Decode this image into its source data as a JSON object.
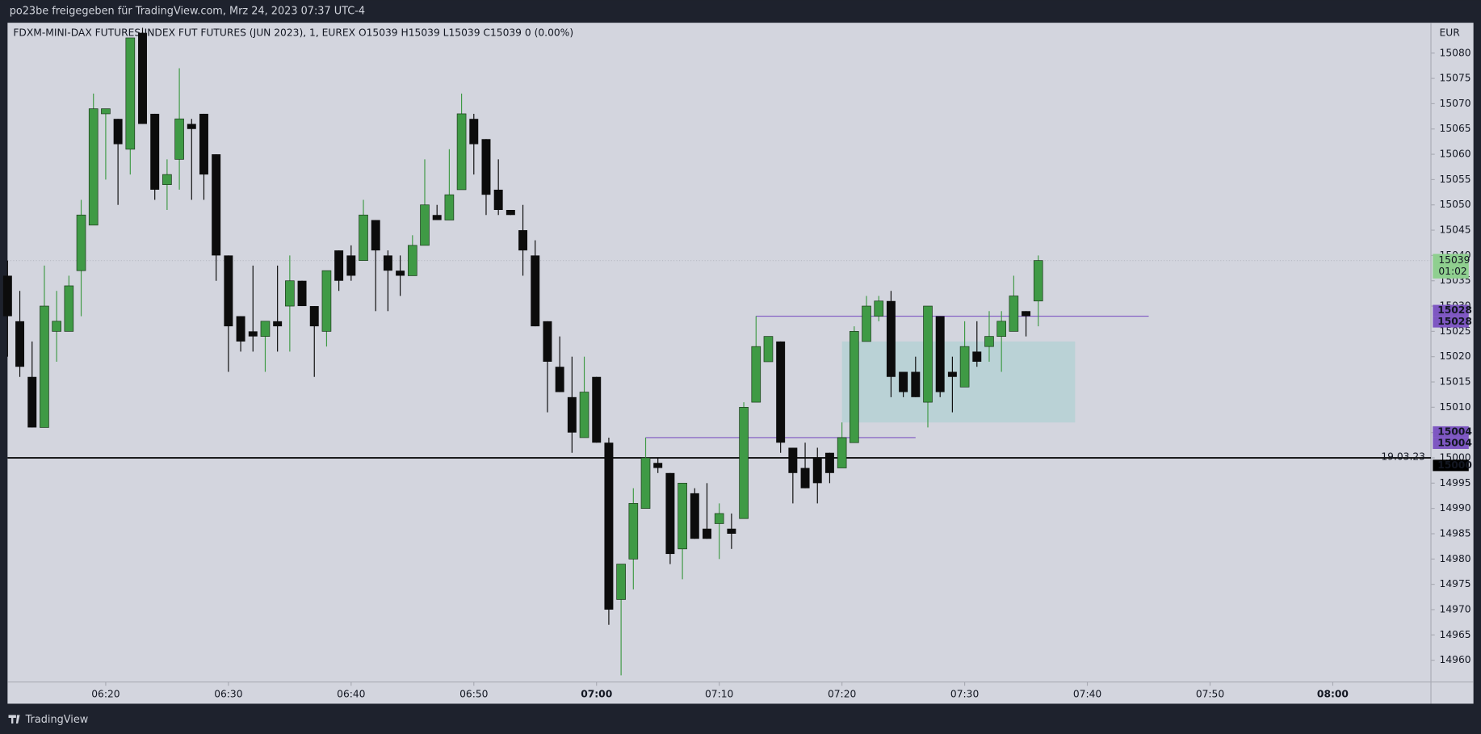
{
  "header": {
    "title": "po23be freigegeben für TradingView.com, Mrz 24, 2023 07:37 UTC-4"
  },
  "footer": {
    "brand": "TradingView"
  },
  "chart_data": {
    "type": "candlestick",
    "legend_text": "FDXM-MINI-DAX FUTURES-INDEX FUT FUTURES (JUN 2023), 1, EUREX  O15039  H15039  L15039  C15039  0 (0.00%)",
    "currency": "EUR",
    "x": [
      "06:12",
      "06:13",
      "06:14",
      "06:15",
      "06:16",
      "06:17",
      "06:18",
      "06:19",
      "06:20",
      "06:21",
      "06:22",
      "06:23",
      "06:24",
      "06:25",
      "06:26",
      "06:27",
      "06:28",
      "06:29",
      "06:30",
      "06:31",
      "06:32",
      "06:33",
      "06:34",
      "06:35",
      "06:36",
      "06:37",
      "06:38",
      "06:39",
      "06:40",
      "06:41",
      "06:42",
      "06:43",
      "06:44",
      "06:45",
      "06:46",
      "06:47",
      "06:48",
      "06:49",
      "06:50",
      "06:51",
      "06:52",
      "06:53",
      "06:54",
      "06:55",
      "06:56",
      "06:57",
      "06:58",
      "06:59",
      "07:00",
      "07:01",
      "07:02",
      "07:03",
      "07:04",
      "07:05",
      "07:06",
      "07:07",
      "07:08",
      "07:09",
      "07:10",
      "07:11",
      "07:12",
      "07:13",
      "07:14",
      "07:15",
      "07:16",
      "07:17",
      "07:18",
      "07:19",
      "07:20",
      "07:21",
      "07:22",
      "07:23",
      "07:24",
      "07:25",
      "07:26",
      "07:27",
      "07:28",
      "07:29",
      "07:30",
      "07:31",
      "07:32",
      "07:33",
      "07:34",
      "07:35",
      "07:36"
    ],
    "open": [
      15036,
      15027,
      15016,
      15006,
      15025,
      15025,
      15037,
      15046,
      15068,
      15067,
      15061,
      15084,
      15068,
      15054,
      15059,
      15066,
      15068,
      15060,
      15040,
      15028,
      15025,
      15024,
      15027,
      15030,
      15035,
      15030,
      15025,
      15041,
      15040,
      15039,
      15047,
      15040,
      15037,
      15036,
      15042,
      15048,
      15047,
      15053,
      15067,
      15063,
      15053,
      15049,
      15045,
      15040,
      15027,
      15018,
      15012,
      15004,
      15016,
      15003,
      14972,
      14980,
      14990,
      14999,
      14997,
      14982,
      14993,
      14986,
      14987,
      14986,
      14988,
      15011,
      15019,
      15023,
      15002,
      14998,
      15000,
      15001,
      14998,
      15003,
      15023,
      15028,
      15031,
      15017,
      15017,
      15011,
      15028,
      15017,
      15014,
      15021,
      15022,
      15024,
      15025,
      15029,
      15031
    ],
    "high": [
      15039,
      15033,
      15023,
      15038,
      15033,
      15036,
      15051,
      15072,
      15069,
      15067,
      15083,
      15085,
      15068,
      15059,
      15077,
      15067,
      15068,
      15060,
      15040,
      15028,
      15038,
      15027,
      15038,
      15040,
      15035,
      15030,
      15037,
      15041,
      15042,
      15051,
      15047,
      15041,
      15040,
      15044,
      15059,
      15050,
      15061,
      15072,
      15068,
      15063,
      15059,
      15049,
      15050,
      15043,
      15027,
      15024,
      15020,
      15020,
      15016,
      15004,
      14979,
      14994,
      15004,
      15000,
      14997,
      14995,
      14994,
      14995,
      14991,
      14989,
      15011,
      15028,
      15024,
      15023,
      15002,
      15003,
      15002,
      15001,
      15007,
      15026,
      15032,
      15032,
      15033,
      15017,
      15020,
      15030,
      15028,
      15020,
      15027,
      15027,
      15029,
      15029,
      15036,
      15029,
      15040
    ],
    "low": [
      15020,
      15016,
      15006,
      15006,
      15019,
      15025,
      15028,
      15046,
      15055,
      15050,
      15056,
      15066,
      15051,
      15049,
      15053,
      15051,
      15051,
      15035,
      15017,
      15021,
      15021,
      15017,
      15021,
      15021,
      15030,
      15016,
      15022,
      15033,
      15035,
      15039,
      15029,
      15029,
      15032,
      15036,
      15042,
      15047,
      15047,
      15053,
      15056,
      15048,
      15048,
      15048,
      15036,
      15026,
      15009,
      15013,
      15001,
      15004,
      15003,
      14967,
      14957,
      14974,
      14990,
      14997,
      14979,
      14976,
      14984,
      14984,
      14980,
      14982,
      14988,
      15011,
      15019,
      15001,
      14991,
      14994,
      14991,
      14995,
      14998,
      15003,
      15023,
      15027,
      15012,
      15012,
      15012,
      15006,
      15012,
      15009,
      15014,
      15018,
      15019,
      15017,
      15025,
      15024,
      15026
    ],
    "close": [
      15028,
      15018,
      15006,
      15030,
      15027,
      15034,
      15048,
      15069,
      15069,
      15062,
      15083,
      15066,
      15053,
      15056,
      15067,
      15065,
      15056,
      15040,
      15026,
      15023,
      15024,
      15027,
      15026,
      15035,
      15030,
      15026,
      15037,
      15035,
      15036,
      15048,
      15041,
      15037,
      15036,
      15042,
      15050,
      15047,
      15052,
      15068,
      15062,
      15052,
      15049,
      15048,
      15041,
      15026,
      15019,
      15013,
      15005,
      15013,
      15003,
      14970,
      14979,
      14991,
      15000,
      14998,
      14981,
      14995,
      14984,
      14984,
      14989,
      14985,
      15010,
      15022,
      15024,
      15003,
      14997,
      14994,
      14995,
      14997,
      15004,
      15025,
      15030,
      15031,
      15016,
      15013,
      15012,
      15030,
      15013,
      15016,
      15022,
      15019,
      15024,
      15027,
      15032,
      15028,
      15039
    ],
    "up_color": "#3f9a45",
    "down_color": "#0c0c0c",
    "xlim": [
      "06:12",
      "08:08"
    ],
    "xticks": [
      "06:20",
      "06:30",
      "06:40",
      "06:50",
      "07:00",
      "07:10",
      "07:20",
      "07:30",
      "07:40",
      "07:50",
      "08:00"
    ],
    "ylim": [
      14955.7,
      15086
    ],
    "yticks": [
      14960,
      14965,
      14970,
      14975,
      14980,
      14985,
      14990,
      14995,
      15000,
      15005,
      15010,
      15015,
      15020,
      15025,
      15030,
      15035,
      15040,
      15045,
      15050,
      15055,
      15060,
      15065,
      15070,
      15075,
      15080
    ],
    "hline": {
      "value": 15000,
      "label": "19.03.23",
      "color": "#000000"
    },
    "levels": [
      {
        "value": 15028,
        "x": [
          "07:13",
          "07:45"
        ],
        "color": "#7e57c2"
      },
      {
        "value": 15004,
        "x": [
          "07:04",
          "07:26"
        ],
        "color": "#7e57c2"
      }
    ],
    "zone": {
      "x": [
        "07:20",
        "07:39"
      ],
      "y": [
        15007,
        15023
      ],
      "color": "#b4d1d3"
    },
    "last_price": {
      "value": 15039,
      "countdown": "01:02",
      "color": "#8fcf8f"
    }
  }
}
